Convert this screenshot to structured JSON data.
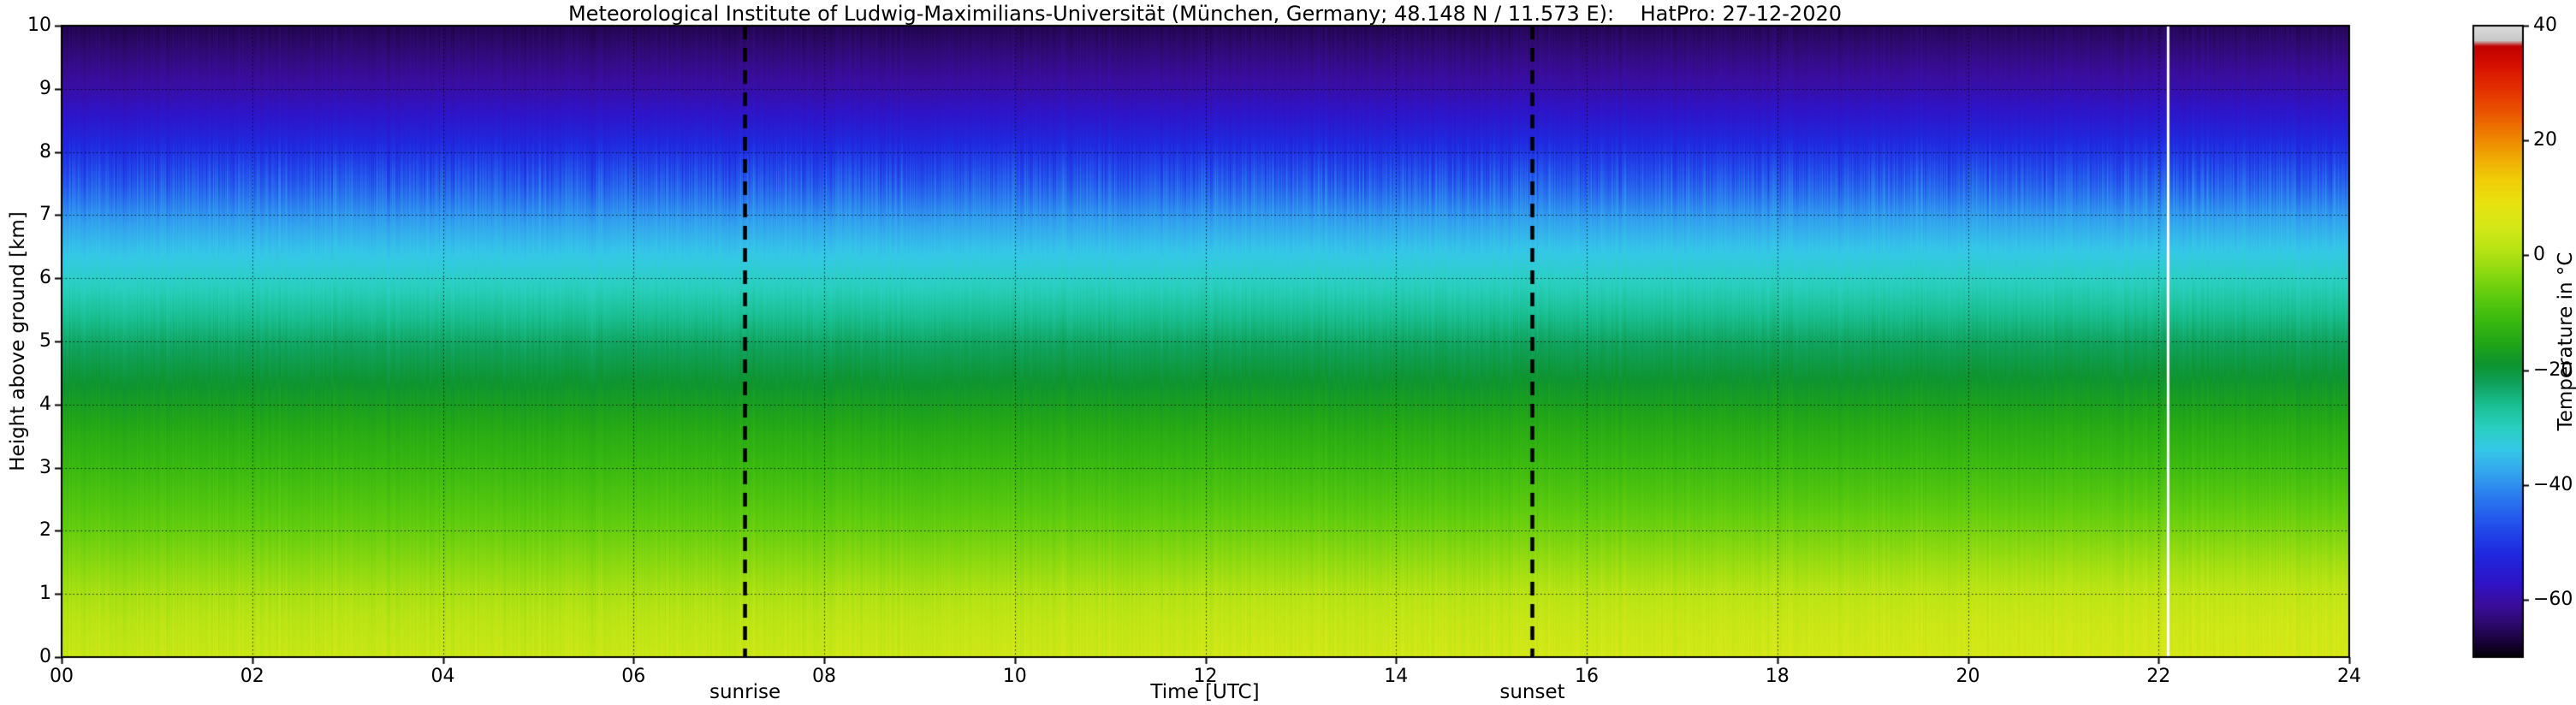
{
  "chart_data": {
    "type": "heatmap",
    "title": "Meteorological Institute of Ludwig-Maximilians-Universität (München, Germany; 48.148 N / 11.573 E):    HatPro: 27-12-2020",
    "xlabel": "Time [UTC]",
    "ylabel": "Height above ground [km]",
    "colorbar_label": "Temperature in  °C",
    "xlim": [
      0,
      24
    ],
    "ylim": [
      0,
      10
    ],
    "x_ticks": {
      "values": [
        0,
        2,
        4,
        6,
        8,
        10,
        12,
        14,
        16,
        18,
        20,
        22,
        24
      ],
      "labels": [
        "00",
        "02",
        "04",
        "06",
        "08",
        "10",
        "12",
        "14",
        "16",
        "18",
        "20",
        "22",
        "24"
      ]
    },
    "y_ticks": {
      "values": [
        0,
        1,
        2,
        3,
        4,
        5,
        6,
        7,
        8,
        9,
        10
      ],
      "labels": [
        "0",
        "1",
        "2",
        "3",
        "4",
        "5",
        "6",
        "7",
        "8",
        "9",
        "10"
      ]
    },
    "grid": {
      "style": "dotted",
      "x_values": [
        2,
        4,
        6,
        8,
        10,
        12,
        14,
        16,
        18,
        20,
        22
      ],
      "y_values": [
        1,
        2,
        3,
        4,
        5,
        6,
        7,
        8,
        9
      ]
    },
    "annotations": [
      {
        "type": "vline-dashed",
        "x": 7.17,
        "label": "sunrise"
      },
      {
        "type": "vline-dashed",
        "x": 15.43,
        "label": "sunset"
      }
    ],
    "missing_data_line_x": 22.1,
    "colorbar": {
      "range": [
        -70,
        40
      ],
      "ticks": [
        {
          "value": 40,
          "label": "40"
        },
        {
          "value": 20,
          "label": "20"
        },
        {
          "value": 0,
          "label": "0"
        },
        {
          "value": -20,
          "label": "−20"
        },
        {
          "value": -40,
          "label": "−40"
        },
        {
          "value": -60,
          "label": "−60"
        }
      ],
      "stops": [
        [
          -70,
          "#05000a"
        ],
        [
          -67,
          "#1c0340"
        ],
        [
          -64,
          "#2e0a70"
        ],
        [
          -61,
          "#3a0d9c"
        ],
        [
          -57,
          "#2f14c8"
        ],
        [
          -52,
          "#1f2ae0"
        ],
        [
          -47,
          "#2350ec"
        ],
        [
          -42,
          "#2b7cee"
        ],
        [
          -38,
          "#33a5ee"
        ],
        [
          -34,
          "#35c8e8"
        ],
        [
          -30,
          "#2ad0c0"
        ],
        [
          -26,
          "#1abf92"
        ],
        [
          -22,
          "#0fa058"
        ],
        [
          -19,
          "#0e9430"
        ],
        [
          -15,
          "#24a816"
        ],
        [
          -11,
          "#3dbb10"
        ],
        [
          -7,
          "#60cc0e"
        ],
        [
          -3,
          "#8cd910"
        ],
        [
          1,
          "#b8e414"
        ],
        [
          5,
          "#d6e818"
        ],
        [
          9,
          "#e8e310"
        ],
        [
          13,
          "#f0cf08"
        ],
        [
          17,
          "#f0ab04"
        ],
        [
          21,
          "#ee7f01"
        ],
        [
          25,
          "#ea5500"
        ],
        [
          29,
          "#e43000"
        ],
        [
          33,
          "#d81200"
        ],
        [
          36.5,
          "#c00000"
        ],
        [
          37.5,
          "#c9c9c9"
        ],
        [
          40,
          "#dcdcdc"
        ]
      ]
    },
    "heatmap": {
      "times": [
        0,
        6,
        12,
        18,
        24
      ],
      "heights": [
        0,
        0.5,
        1,
        1.5,
        2,
        2.5,
        3,
        3.5,
        4,
        4.5,
        5,
        5.5,
        6,
        6.5,
        7,
        7.5,
        8,
        8.5,
        9,
        9.5,
        10
      ],
      "profiles": [
        [
          3.0,
          1.5,
          -0.5,
          -3.5,
          -6.5,
          -9.0,
          -11.5,
          -14.0,
          -17.0,
          -20.0,
          -23.0,
          -27.0,
          -31.0,
          -35.0,
          -39.5,
          -45.5,
          -51.0,
          -56.0,
          -60.0,
          -63.0,
          -66.0
        ],
        [
          3.2,
          1.6,
          -0.4,
          -3.4,
          -6.4,
          -9.0,
          -11.5,
          -14.0,
          -17.0,
          -20.0,
          -23.0,
          -27.0,
          -31.0,
          -35.0,
          -39.5,
          -45.5,
          -51.0,
          -56.0,
          -60.0,
          -63.0,
          -66.0
        ],
        [
          4.0,
          2.6,
          0.6,
          -2.6,
          -5.8,
          -8.6,
          -11.2,
          -13.8,
          -16.8,
          -19.8,
          -22.8,
          -26.8,
          -30.8,
          -34.8,
          -39.2,
          -45.2,
          -50.8,
          -55.8,
          -59.8,
          -62.8,
          -65.8
        ],
        [
          4.6,
          3.4,
          1.4,
          -1.8,
          -5.2,
          -8.2,
          -11.0,
          -13.6,
          -16.6,
          -19.6,
          -22.6,
          -26.6,
          -30.6,
          -34.6,
          -39.0,
          -45.0,
          -50.6,
          -55.6,
          -59.6,
          -62.6,
          -65.6
        ],
        [
          5.0,
          4.0,
          2.2,
          -1.0,
          -4.6,
          -7.8,
          -10.8,
          -13.4,
          -16.4,
          -19.4,
          -22.4,
          -26.4,
          -30.4,
          -34.4,
          -38.8,
          -44.8,
          -50.4,
          -55.4,
          -59.4,
          -62.4,
          -65.4
        ]
      ]
    }
  }
}
